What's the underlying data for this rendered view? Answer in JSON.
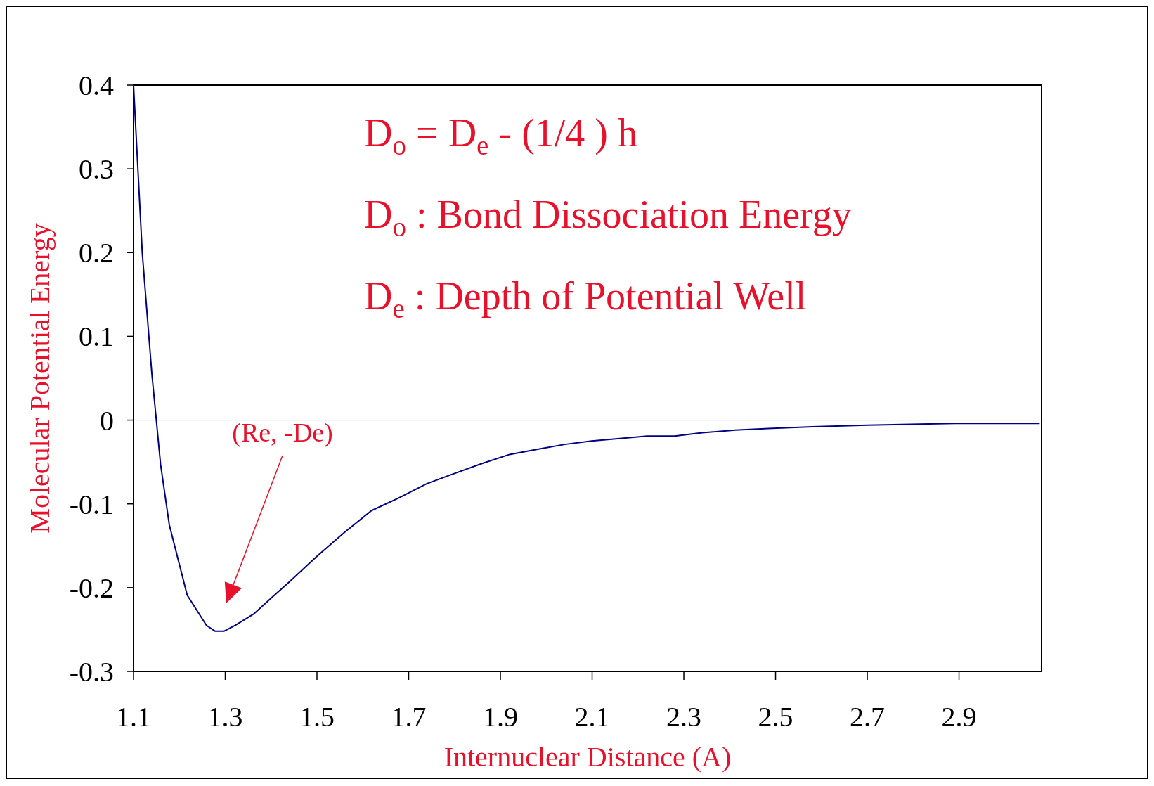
{
  "chart_data": {
    "type": "line",
    "xlabel": "Internuclear Distance (A)",
    "ylabel": "Molecular Potential Energy",
    "x": [
      1.1,
      1.119,
      1.14,
      1.159,
      1.178,
      1.217,
      1.259,
      1.278,
      1.297,
      1.322,
      1.363,
      1.403,
      1.44,
      1.499,
      1.56,
      1.619,
      1.678,
      1.739,
      1.798,
      1.859,
      1.92,
      1.979,
      2.04,
      2.099,
      2.16,
      2.22,
      2.28,
      2.34,
      2.412,
      2.484,
      2.58,
      2.7,
      2.892,
      3.076
    ],
    "series": [
      {
        "color": "#000080",
        "values": [
          0.4,
          0.2,
          0.055,
          -0.053,
          -0.125,
          -0.209,
          -0.245,
          -0.252,
          -0.252,
          -0.245,
          -0.231,
          -0.211,
          -0.193,
          -0.163,
          -0.134,
          -0.108,
          -0.093,
          -0.076,
          -0.064,
          -0.052,
          -0.041,
          -0.035,
          -0.029,
          -0.025,
          -0.022,
          -0.019,
          -0.019,
          -0.015,
          -0.012,
          -0.01,
          -0.008,
          -0.006,
          -0.004,
          -0.004
        ]
      }
    ],
    "xlim": [
      1.1,
      3.08
    ],
    "xticks": [
      1.1,
      1.3,
      1.5,
      1.7,
      1.9,
      2.1,
      2.3,
      2.5,
      2.7,
      2.9
    ],
    "ylim": [
      -0.3,
      0.4
    ],
    "yticks": [
      -0.3,
      -0.2,
      -0.1,
      0,
      0.1,
      0.2,
      0.3,
      0.4
    ],
    "ref_lines": [
      {
        "axis": "y",
        "value": 0,
        "color": "#808080"
      }
    ],
    "annotations": [
      "D$_{o}$ = D$_{e}$ - (1/4 ) h",
      "D$_{o}$ : Bond Dissociation Energy",
      "D$_{e}$ : Depth of Potential Well",
      "(Re, -De)"
    ],
    "grid": false,
    "marker": "none",
    "line_style": "solid"
  }
}
